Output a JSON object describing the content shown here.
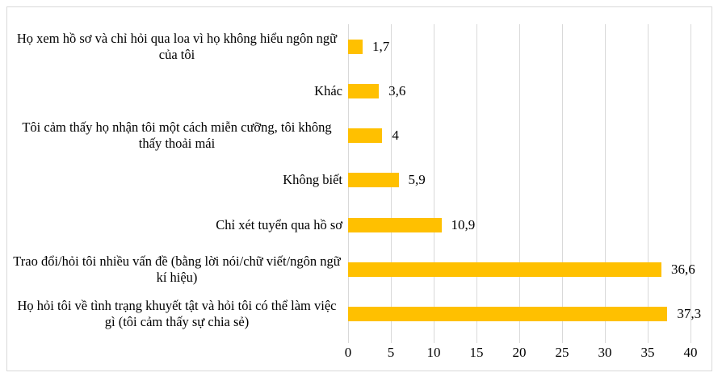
{
  "chart_data": {
    "type": "bar",
    "orientation": "horizontal",
    "title": "",
    "xlabel": "",
    "ylabel": "",
    "categories": [
      "Họ xem hồ sơ và chỉ hỏi qua loa vì họ không hiểu ngôn ngữ của tôi",
      "Khác",
      "Tôi cảm thấy họ nhận tôi một cách miễn cưỡng, tôi không thấy thoải mái",
      "Không biết",
      "Chỉ xét tuyển qua hồ sơ",
      "Trao đổi/hỏi tôi nhiều vấn đề (bằng lời nói/chữ viết/ngôn ngữ kí hiệu)",
      "Họ hỏi tôi về tình trạng khuyết tật và hỏi tôi có thể làm việc gì (tôi cảm thấy sự chia sẻ)"
    ],
    "values": [
      1.7,
      3.6,
      4,
      5.9,
      10.9,
      36.6,
      37.3
    ],
    "value_labels": [
      "1,7",
      "3,6",
      "4",
      "5,9",
      "10,9",
      "36,6",
      "37,3"
    ],
    "x_ticks": [
      0,
      5,
      10,
      15,
      20,
      25,
      30,
      35,
      40
    ],
    "x_tick_labels": [
      "0",
      "5",
      "10",
      "15",
      "20",
      "25",
      "30",
      "35",
      "40"
    ],
    "xlim": [
      0,
      40
    ],
    "grid": true,
    "legend_position": "none",
    "bar_color": "#FFC000",
    "gridline_color": "#d9d9d9",
    "decimal_separator": ","
  }
}
